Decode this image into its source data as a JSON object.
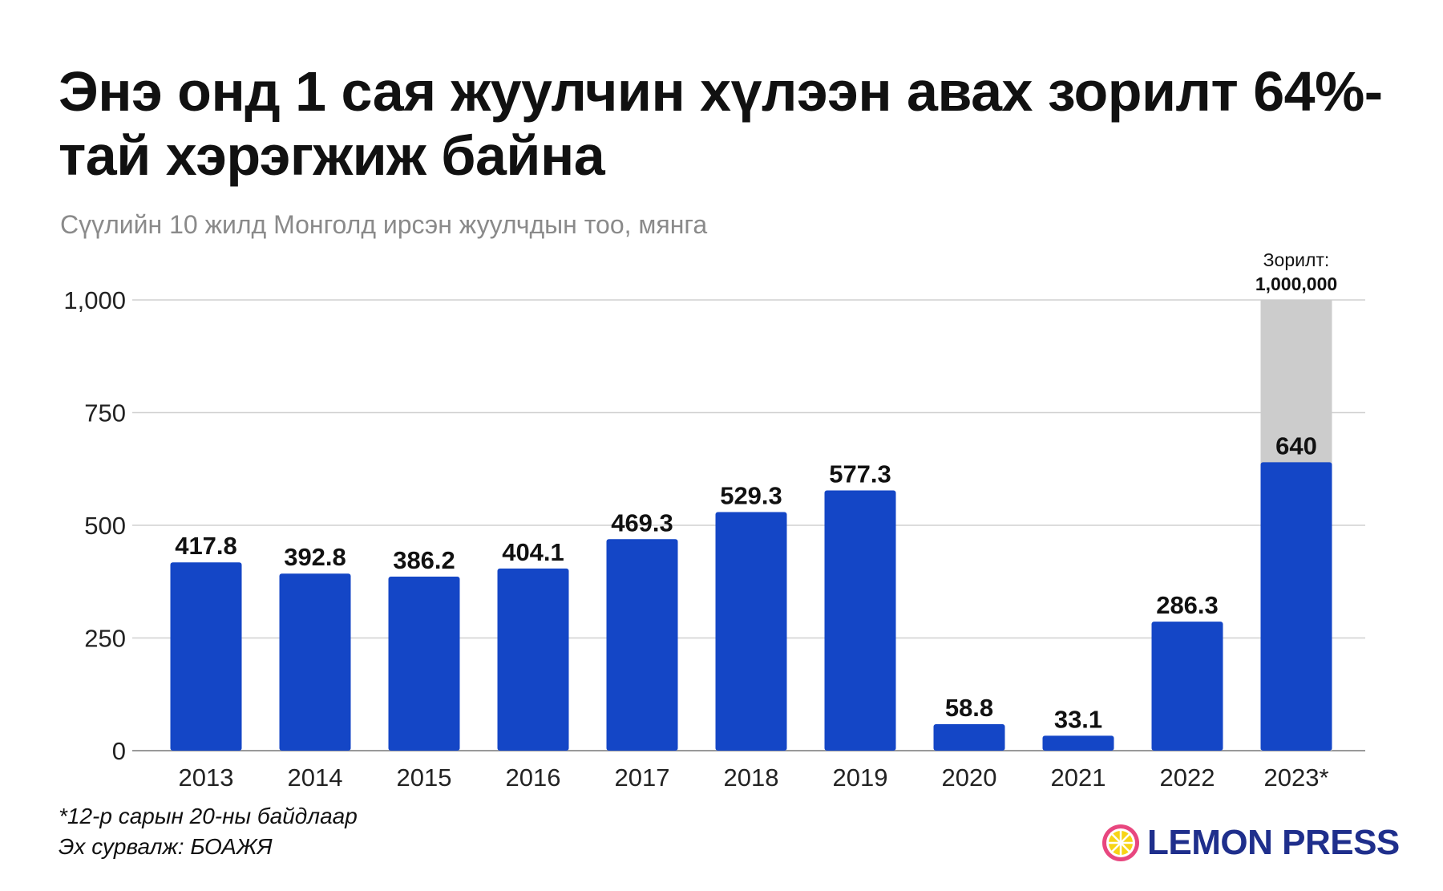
{
  "title": "Энэ онд 1 сая жуулчин хүлээн авах зорилт 64%-тай хэрэгжиж байна",
  "subtitle": "Сүүлийн 10 жилд Монголд ирсэн жуулчдын тоо, мянга",
  "notes": {
    "footnote": "*12-р сарын 20-ны байдлаар",
    "source": "Эх сурвалж: БОАЖЯ"
  },
  "brand": {
    "name": "LEMON PRESS",
    "text_color": "#1f2f8c",
    "icon": "lemon-slice-icon"
  },
  "colors": {
    "bar": "#1446c6",
    "target": "#cccccc",
    "grid": "#d0d0d0",
    "text": "#111111",
    "muted": "#8a8a8a"
  },
  "chart_data": {
    "type": "bar",
    "categories": [
      "2013",
      "2014",
      "2015",
      "2016",
      "2017",
      "2018",
      "2019",
      "2020",
      "2021",
      "2022",
      "2023*"
    ],
    "values": [
      417.8,
      392.8,
      386.2,
      404.1,
      469.3,
      529.3,
      577.3,
      58.8,
      33.1,
      286.3,
      640
    ],
    "value_labels": [
      "417.8",
      "392.8",
      "386.2",
      "404.1",
      "469.3",
      "529.3",
      "577.3",
      "58.8",
      "33.1",
      "286.3",
      "640"
    ],
    "ylim": [
      0,
      1000
    ],
    "yticks": [
      0,
      250,
      500,
      750,
      1000
    ],
    "ytick_labels": [
      "0",
      "250",
      "500",
      "750",
      "1,000"
    ],
    "grid": true,
    "target": {
      "category": "2023*",
      "value": 1000,
      "label_line1": "Зорилт:",
      "label_line2": "1,000,000"
    }
  }
}
